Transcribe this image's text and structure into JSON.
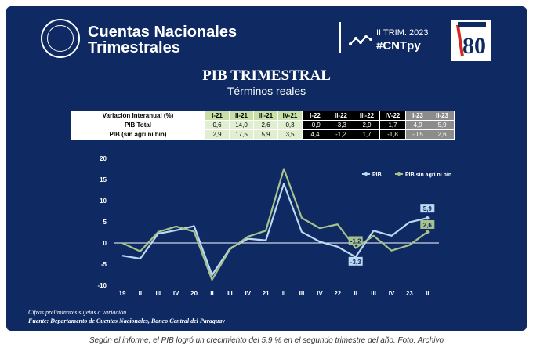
{
  "header": {
    "title_line1": "Cuentas Nacionales",
    "title_line2": "Trimestrales",
    "period": "II TRIM. 2023",
    "hashtag": "#CNTpy",
    "seal_icon": "central-bank-seal-icon",
    "anniversary_logo": "guarani-80-logo"
  },
  "page_title": "PIB TRIMESTRAL",
  "page_subtitle": "Términos reales",
  "table": {
    "header_label": "Variación Interanual (%)",
    "columns": [
      "I-21",
      "II-21",
      "III-21",
      "IV-21",
      "I-22",
      "II-22",
      "III-22",
      "IV-22",
      "I-23",
      "II-23"
    ],
    "rows": [
      {
        "label": "PIB Total",
        "values": [
          "0,6",
          "14,0",
          "2,6",
          "0,3",
          "-0,9",
          "-3,3",
          "2,9",
          "1,7",
          "4,9",
          "5,9"
        ]
      },
      {
        "label": "PIB (sin agri ni bin)",
        "values": [
          "2,9",
          "17,5",
          "5,9",
          "3,5",
          "4,4",
          "-1,2",
          "1,7",
          "-1,8",
          "-0,5",
          "2,6"
        ]
      }
    ]
  },
  "chart_data": {
    "type": "line",
    "categories": [
      "19",
      "II",
      "III",
      "IV",
      "20",
      "II",
      "III",
      "IV",
      "21",
      "II",
      "III",
      "IV",
      "22",
      "II",
      "III",
      "IV",
      "23",
      "II"
    ],
    "series": [
      {
        "name": "PIB",
        "color": "#bcd8f2",
        "values": [
          -3.0,
          -3.7,
          2.2,
          3.0,
          4.0,
          -7.6,
          -1.3,
          1.0,
          0.6,
          14.0,
          2.6,
          0.3,
          -0.9,
          -3.3,
          2.9,
          1.7,
          4.9,
          5.9
        ]
      },
      {
        "name": "PIB sin agri ni bin",
        "color": "#a7c28b",
        "values": [
          0.0,
          -2.0,
          2.6,
          3.9,
          2.7,
          -8.7,
          -1.5,
          1.5,
          2.9,
          17.5,
          5.9,
          3.5,
          4.4,
          -1.2,
          1.7,
          -1.8,
          -0.5,
          2.6
        ]
      }
    ],
    "ylim": [
      -10,
      20
    ],
    "yticks": [
      "-10",
      "-5",
      "0",
      "5",
      "10",
      "15",
      "20"
    ],
    "legend_position": "top-right",
    "data_labels": [
      {
        "series": "PIB",
        "index": 13,
        "text": "-3,3"
      },
      {
        "series": "PIB sin agri ni bin",
        "index": 13,
        "text": "-1,2"
      },
      {
        "series": "PIB",
        "index": 17,
        "text": "5,9"
      },
      {
        "series": "PIB sin agri ni bin",
        "index": 17,
        "text": "2,6"
      }
    ]
  },
  "notes": {
    "preliminary": "Cifras preliminares sujetas a variación",
    "source": "Fuente: Departamento de Cuentas Nacionales, Banco Central del Paraguay"
  },
  "caption": "Según el informe, el PIB logró un crecimiento del 5,9 % en el segundo trimestre del año. Foto: Archivo"
}
